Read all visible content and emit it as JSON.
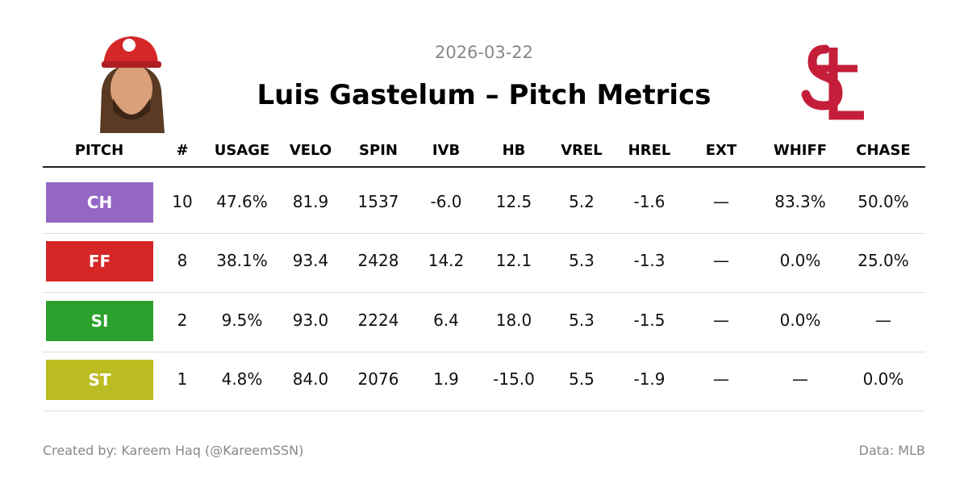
{
  "header": {
    "date": "2026-03-22",
    "title": "Luis Gastelum – Pitch Metrics"
  },
  "table": {
    "columns": [
      "PITCH",
      "#",
      "USAGE",
      "VELO",
      "SPIN",
      "IVB",
      "HB",
      "VREL",
      "HREL",
      "EXT",
      "WHIFF",
      "CHASE"
    ],
    "rows": [
      {
        "color": "#9467c4",
        "cells": [
          "CH",
          "10",
          "47.6%",
          "81.9",
          "1537",
          "-6.0",
          "12.5",
          "5.2",
          "-1.6",
          "—",
          "83.3%",
          "50.0%"
        ]
      },
      {
        "color": "#d62728",
        "cells": [
          "FF",
          "8",
          "38.1%",
          "93.4",
          "2428",
          "14.2",
          "12.1",
          "5.3",
          "-1.3",
          "—",
          "0.0%",
          "25.0%"
        ]
      },
      {
        "color": "#2ca02c",
        "cells": [
          "SI",
          "2",
          "9.5%",
          "93.0",
          "2224",
          "6.4",
          "18.0",
          "5.3",
          "-1.5",
          "—",
          "0.0%",
          "—"
        ]
      },
      {
        "color": "#bcbd22",
        "cells": [
          "ST",
          "1",
          "4.8%",
          "84.0",
          "2076",
          "1.9",
          "-15.0",
          "5.5",
          "-1.9",
          "—",
          "—",
          "0.0%"
        ]
      }
    ]
  },
  "footer": {
    "credit": "Created by: Kareem Haq (@KareemSSN)",
    "source": "Data: MLB"
  }
}
